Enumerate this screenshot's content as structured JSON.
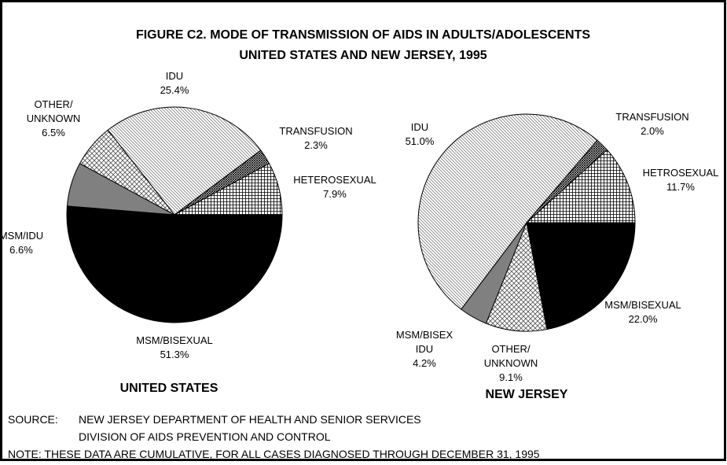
{
  "title": "FIGURE C2.  MODE OF TRANSMISSION OF AIDS IN ADULTS/ADOLESCENTS",
  "subtitle": "UNITED STATES AND NEW JERSEY, 1995",
  "chart_data": [
    {
      "type": "pie",
      "title": "UNITED STATES",
      "categories": [
        "MSM/BISEXUAL",
        "MSM/IDU",
        "OTHER/\nUNKNOWN",
        "IDU",
        "TRANSFUSION",
        "HETEROSEXUAL"
      ],
      "values": [
        51.3,
        6.6,
        6.5,
        25.4,
        2.3,
        7.9
      ],
      "value_labels": [
        "51.3%",
        "6.6%",
        "6.5%",
        "25.4%",
        "2.3%",
        "7.9%"
      ],
      "fills": [
        "black",
        "gray",
        "crosshatch",
        "diagonal",
        "dense-crosshatch",
        "grid"
      ]
    },
    {
      "type": "pie",
      "title": "NEW JERSEY",
      "categories": [
        "MSM/BISEXUAL",
        "OTHER/\nUNKNOWN",
        "MSM/BISEX\nIDU",
        "IDU",
        "TRANSFUSION",
        "HETROSEXUAL"
      ],
      "values": [
        22.0,
        9.1,
        4.2,
        51.0,
        2.0,
        11.7
      ],
      "value_labels": [
        "22.0%",
        "9.1%",
        "4.2%",
        "51.0%",
        "2.0%",
        "11.7%"
      ],
      "fills": [
        "black",
        "crosshatch",
        "gray",
        "diagonal",
        "dense-crosshatch",
        "grid"
      ]
    }
  ],
  "source_label": "SOURCE:",
  "source": [
    "NEW JERSEY DEPARTMENT OF HEALTH AND SENIOR SERVICES",
    "DIVISION OF AIDS PREVENTION AND CONTROL"
  ],
  "note": "NOTE:  THESE DATA ARE CUMULATIVE, FOR ALL CASES DIAGNOSED THROUGH DECEMBER 31, 1995"
}
